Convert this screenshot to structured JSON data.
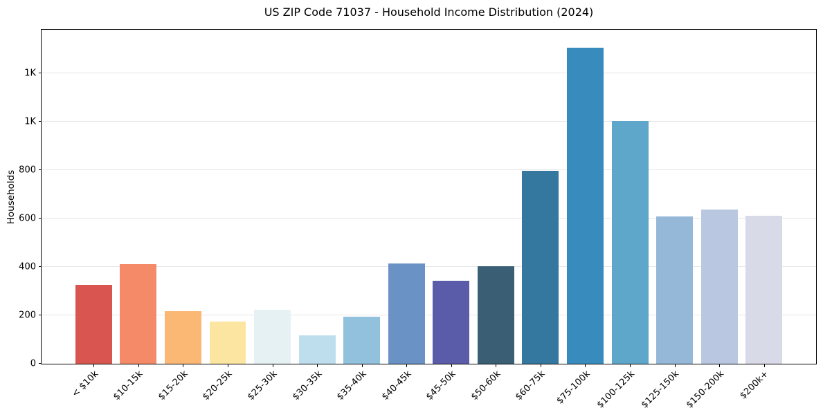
{
  "title": "US ZIP Code 71037 - Household Income Distribution (2024)",
  "chart_data": {
    "type": "bar",
    "title": "US ZIP Code 71037 - Household Income Distribution (2024)",
    "xlabel": "",
    "ylabel": "Households",
    "categories": [
      "< $10k",
      "$10-15k",
      "$15-20k",
      "$20-25k",
      "$25-30k",
      "$30-35k",
      "$35-40k",
      "$40-45k",
      "$45-50k",
      "$50-60k",
      "$60-75k",
      "$75-100k",
      "$100-125k",
      "$125-150k",
      "$150-200k",
      "$200k+"
    ],
    "values": [
      325,
      410,
      217,
      174,
      224,
      117,
      194,
      413,
      342,
      402,
      797,
      1305,
      1003,
      609,
      638,
      612
    ],
    "bar_colors": [
      "#d8564f",
      "#f48a68",
      "#fab874",
      "#fce5a0",
      "#e6f1f4",
      "#bedeed",
      "#92c1de",
      "#6a92c5",
      "#5a5ba9",
      "#3a5f74",
      "#35789f",
      "#388cbd",
      "#5ea7cb",
      "#95b8d9",
      "#b9c8e0",
      "#d8dae7"
    ],
    "ylim": [
      0,
      1380
    ],
    "yticks": [
      {
        "value": 0,
        "label": "0"
      },
      {
        "value": 200,
        "label": "200"
      },
      {
        "value": 400,
        "label": "400"
      },
      {
        "value": 600,
        "label": "600"
      },
      {
        "value": 800,
        "label": "800"
      },
      {
        "value": 1000,
        "label": "1K"
      },
      {
        "value": 1200,
        "label": "1K"
      }
    ],
    "grid": "horizontal",
    "legend": "none"
  },
  "colors": {
    "background": "#ffffff",
    "grid": "#e6e6e6",
    "spine": "#000000",
    "text": "#000000"
  }
}
